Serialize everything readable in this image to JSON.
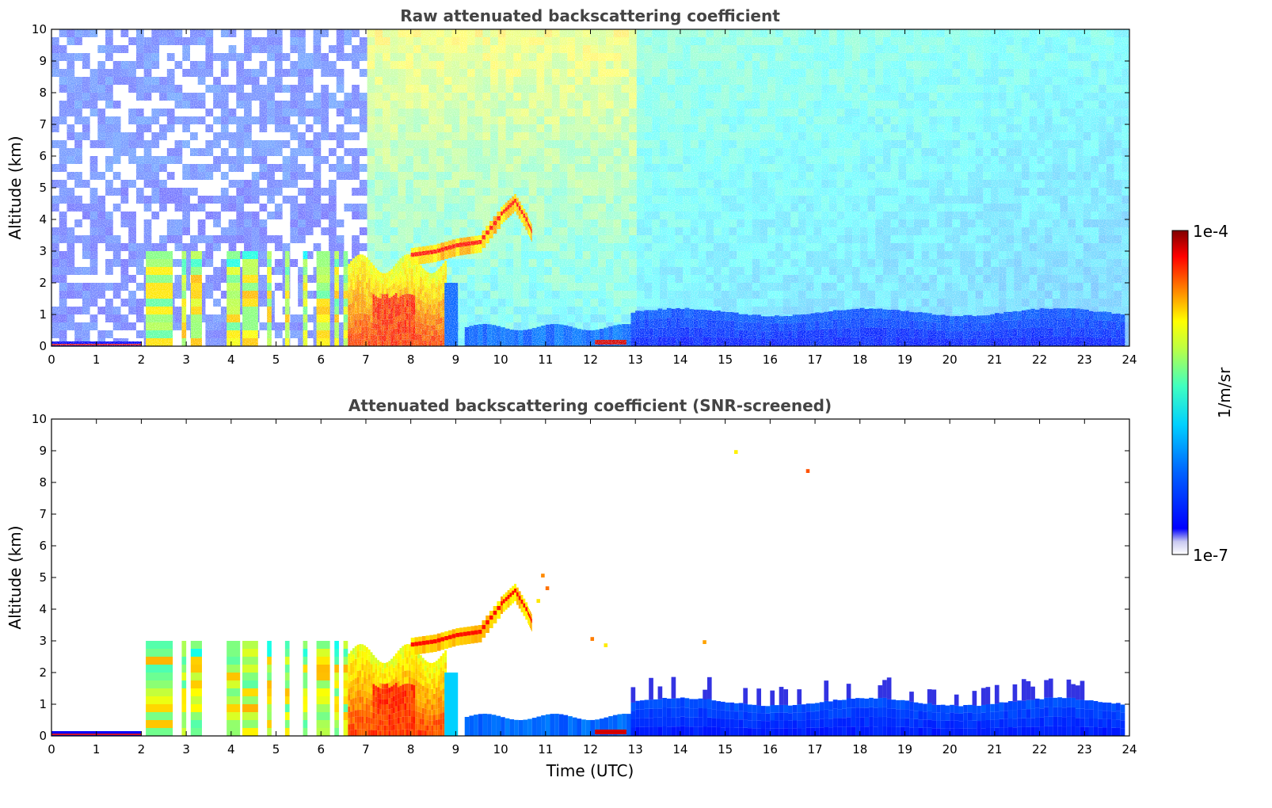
{
  "chart_data": [
    {
      "type": "heatmap",
      "title": "Raw attenuated backscattering coefficient",
      "xlabel": "",
      "ylabel": "Altitude (km)",
      "xlim": [
        0,
        24
      ],
      "ylim": [
        0,
        10
      ],
      "xticks": [
        "0",
        "1",
        "2",
        "3",
        "4",
        "5",
        "6",
        "7",
        "8",
        "9",
        "10",
        "11",
        "12",
        "13",
        "14",
        "15",
        "16",
        "17",
        "18",
        "19",
        "20",
        "21",
        "22",
        "23",
        "24"
      ],
      "yticks": [
        "0",
        "1",
        "2",
        "3",
        "4",
        "5",
        "6",
        "7",
        "8",
        "9",
        "10"
      ],
      "colorscale": "jet, log",
      "features": [
        {
          "what": "boundary layer",
          "x": [
            0,
            1.9
          ],
          "y": [
            0,
            0.15
          ]
        },
        {
          "what": "cloud columns",
          "x": [
            2.1,
            6.6
          ],
          "y": [
            0,
            3.0
          ]
        },
        {
          "what": "aerosol plume",
          "x": [
            6.6,
            8.8
          ],
          "y": [
            0,
            3.0
          ]
        },
        {
          "what": "elevated layer",
          "x": [
            8.0,
            10.7
          ],
          "y": [
            2.5,
            4.8
          ]
        },
        {
          "what": "boundary layer",
          "x": [
            9.5,
            12.8
          ],
          "y": [
            0,
            0.6
          ]
        },
        {
          "what": "boundary layer",
          "x": [
            12.9,
            23.9
          ],
          "y": [
            0,
            1.2
          ]
        }
      ]
    },
    {
      "type": "heatmap",
      "title": "Attenuated backscattering coefficient (SNR-screened)",
      "xlabel": "Time (UTC)",
      "ylabel": "Altitude (km)",
      "xlim": [
        0,
        24
      ],
      "ylim": [
        0,
        10
      ],
      "xticks": [
        "0",
        "1",
        "2",
        "3",
        "4",
        "5",
        "6",
        "7",
        "8",
        "9",
        "10",
        "11",
        "12",
        "13",
        "14",
        "15",
        "16",
        "17",
        "18",
        "19",
        "20",
        "21",
        "22",
        "23",
        "24"
      ],
      "yticks": [
        "0",
        "1",
        "2",
        "3",
        "4",
        "5",
        "6",
        "7",
        "8",
        "9",
        "10"
      ],
      "colorscale": "jet, log",
      "features": [
        {
          "what": "boundary layer",
          "x": [
            0,
            2.0
          ],
          "y": [
            0,
            0.15
          ]
        },
        {
          "what": "cloud columns",
          "x": [
            2.1,
            6.6
          ],
          "y": [
            0,
            3.0
          ]
        },
        {
          "what": "aerosol plume",
          "x": [
            6.6,
            8.8
          ],
          "y": [
            0,
            3.0
          ]
        },
        {
          "what": "elevated layer",
          "x": [
            8.0,
            10.7
          ],
          "y": [
            2.5,
            4.8
          ]
        },
        {
          "what": "boundary layer",
          "x": [
            9.2,
            12.8
          ],
          "y": [
            0,
            0.7
          ]
        },
        {
          "what": "boundary layer",
          "x": [
            12.9,
            23.9
          ],
          "y": [
            0,
            1.2
          ]
        }
      ]
    }
  ],
  "colorbar": {
    "max_label": "1e-4",
    "min_label": "1e-7",
    "unit_label": "1/m/sr",
    "scale": "log"
  }
}
